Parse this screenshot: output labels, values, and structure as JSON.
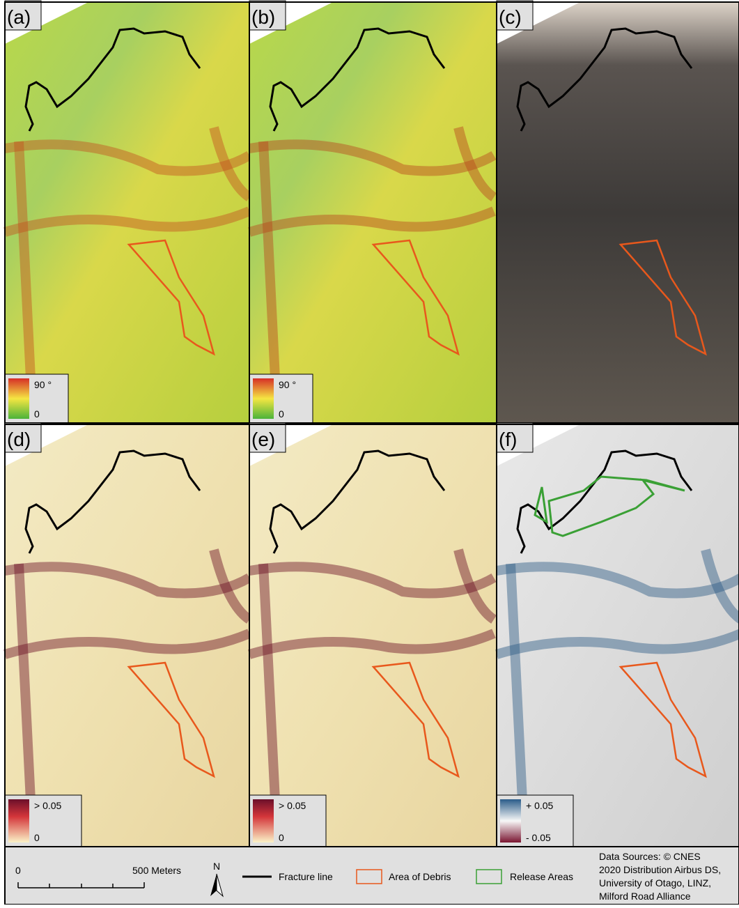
{
  "panels": [
    {
      "label": "(a)",
      "legend_max": "90 °",
      "legend_min": "0"
    },
    {
      "label": "(b)",
      "legend_max": "90 °",
      "legend_min": "0"
    },
    {
      "label": "(c)"
    },
    {
      "label": "(d)",
      "legend_max": "> 0.05",
      "legend_min": "0"
    },
    {
      "label": "(e)",
      "legend_max": "> 0.05",
      "legend_min": "0"
    },
    {
      "label": "(f)",
      "legend_max": "+ 0.05",
      "legend_min": "- 0.05"
    }
  ],
  "legend": {
    "scale_start": "0",
    "scale_end": "500 Meters",
    "north": "N",
    "items": [
      "Fracture line",
      "Area of Debris",
      "Release Areas"
    ],
    "sources": [
      "Data Sources: © CNES",
      "2020 Distribution Airbus DS,",
      "University of Otago, LINZ,",
      "Milford Road Alliance"
    ]
  }
}
